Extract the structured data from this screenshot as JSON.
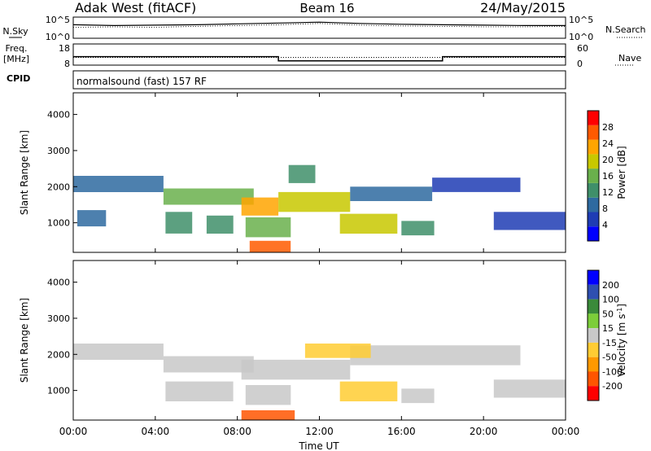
{
  "header": {
    "site": "Adak West (fitACF)",
    "beam": "Beam 16",
    "date": "24/May/2015"
  },
  "top_panel": {
    "nsky_label": "N.Sky",
    "nsearch_label": "N.Search",
    "noise_ticks_left": [
      "10^5",
      "10^0"
    ],
    "noise_ticks_right": [
      "10^5",
      "10^0"
    ],
    "freq_label": "Freq.",
    "freq_unit": "[MHz]",
    "freq_ticks": [
      "18",
      "8"
    ],
    "nave_label": "Nave",
    "nave_ticks": [
      "60",
      "0"
    ],
    "cpid_label": "CPID",
    "cpid_text": "normalsound (fast) 157 RF"
  },
  "x_axis": {
    "label": "Time UT",
    "ticks": [
      "00:00",
      "04:00",
      "08:00",
      "12:00",
      "16:00",
      "20:00",
      "00:00"
    ]
  },
  "colors": {
    "frame": "#000000",
    "power_scale": [
      "#0000ff",
      "#1e3cb4",
      "#2e6aa0",
      "#3f8f6a",
      "#6ab04c",
      "#c8c800",
      "#ffa500",
      "#ff5a00",
      "#ff0000"
    ],
    "velocity_scale": [
      "#0000ff",
      "#2e4fb0",
      "#3a8a3a",
      "#7ccd3a",
      "#c8c8c8",
      "#ffcc33",
      "#ff9900",
      "#ff5500",
      "#ff0000"
    ]
  },
  "chart_data": [
    {
      "type": "line",
      "name": "noise-panel",
      "series": [
        {
          "name": "N.Sky",
          "x": [
            0,
            2,
            4,
            6,
            8,
            10,
            12,
            14,
            16,
            18,
            20,
            22,
            24
          ],
          "y": [
            3.2,
            3.0,
            3.1,
            3.2,
            3.4,
            3.6,
            3.8,
            3.5,
            3.3,
            3.2,
            3.1,
            3.0,
            3.0
          ]
        },
        {
          "name": "N.Search",
          "x": [
            0,
            2,
            4,
            6,
            8,
            10,
            12,
            14,
            16,
            18,
            20,
            22,
            24
          ],
          "y": [
            2.6,
            2.7,
            2.6,
            2.8,
            3.0,
            3.2,
            3.5,
            3.1,
            2.9,
            2.8,
            2.7,
            2.7,
            2.8
          ]
        }
      ],
      "xlim": [
        0,
        24
      ],
      "ylim": [
        0,
        5
      ],
      "yscale": "log"
    },
    {
      "type": "line",
      "name": "freq-nave-panel",
      "series": [
        {
          "name": "Freq.",
          "x": [
            0,
            10,
            10,
            18,
            18,
            24
          ],
          "y": [
            12,
            12,
            10,
            10,
            12,
            12
          ]
        },
        {
          "name": "Nave",
          "x": [
            0,
            6,
            12,
            18,
            24
          ],
          "y": [
            22,
            22,
            22,
            22,
            22
          ]
        }
      ],
      "xlim": [
        0,
        24
      ],
      "ylim_freq": [
        8,
        18
      ],
      "ylim_nave": [
        0,
        60
      ]
    },
    {
      "type": "heatmap",
      "name": "power",
      "ylabel": "Slant Range [km]",
      "xlabel": "",
      "xlim": [
        0,
        24
      ],
      "ylim": [
        180,
        4600
      ],
      "yticks": [
        "1000",
        "2000",
        "3000",
        "4000"
      ],
      "colorbar_label": "Power [dB]",
      "colorbar_ticks": [
        "4",
        "8",
        "12",
        "16",
        "20",
        "24",
        "28"
      ],
      "regions": [
        {
          "t0": 0.0,
          "t1": 4.4,
          "r0": 1850,
          "r1": 2300,
          "value": 8
        },
        {
          "t0": 4.4,
          "t1": 8.8,
          "r0": 1500,
          "r1": 1950,
          "value": 16
        },
        {
          "t0": 8.2,
          "t1": 10.0,
          "r0": 1200,
          "r1": 1700,
          "value": 22
        },
        {
          "t0": 10.0,
          "t1": 13.5,
          "r0": 1300,
          "r1": 1850,
          "value": 18
        },
        {
          "t0": 13.5,
          "t1": 17.5,
          "r0": 1600,
          "r1": 2000,
          "value": 8
        },
        {
          "t0": 17.5,
          "t1": 21.8,
          "r0": 1850,
          "r1": 2250,
          "value": 6
        },
        {
          "t0": 0.2,
          "t1": 1.6,
          "r0": 900,
          "r1": 1350,
          "value": 8
        },
        {
          "t0": 4.5,
          "t1": 5.8,
          "r0": 700,
          "r1": 1300,
          "value": 14
        },
        {
          "t0": 6.5,
          "t1": 7.8,
          "r0": 700,
          "r1": 1200,
          "value": 12
        },
        {
          "t0": 8.4,
          "t1": 10.6,
          "r0": 600,
          "r1": 1150,
          "value": 16
        },
        {
          "t0": 13.0,
          "t1": 15.8,
          "r0": 700,
          "r1": 1250,
          "value": 20
        },
        {
          "t0": 16.0,
          "t1": 17.6,
          "r0": 650,
          "r1": 1050,
          "value": 12
        },
        {
          "t0": 20.5,
          "t1": 24.0,
          "r0": 800,
          "r1": 1300,
          "value": 6
        },
        {
          "t0": 10.5,
          "t1": 11.8,
          "r0": 2100,
          "r1": 2600,
          "value": 12
        },
        {
          "t0": 8.6,
          "t1": 10.6,
          "r0": 180,
          "r1": 500,
          "value": 28
        }
      ]
    },
    {
      "type": "heatmap",
      "name": "velocity",
      "ylabel": "Slant Range [km]",
      "xlabel": "Time UT",
      "xlim": [
        0,
        24
      ],
      "ylim": [
        180,
        4600
      ],
      "yticks": [
        "1000",
        "2000",
        "3000",
        "4000"
      ],
      "colorbar_label": "Velocity [m s^-1]",
      "colorbar_ticks": [
        "200",
        "100",
        "50",
        "15",
        "-15",
        "-50",
        "-100",
        "-200"
      ],
      "regions": [
        {
          "t0": 0.0,
          "t1": 4.4,
          "r0": 1850,
          "r1": 2300,
          "value": 0
        },
        {
          "t0": 4.4,
          "t1": 8.8,
          "r0": 1500,
          "r1": 1950,
          "value": 0
        },
        {
          "t0": 8.2,
          "t1": 13.5,
          "r0": 1300,
          "r1": 1850,
          "value": 0
        },
        {
          "t0": 13.5,
          "t1": 21.8,
          "r0": 1700,
          "r1": 2250,
          "value": 0
        },
        {
          "t0": 11.3,
          "t1": 14.5,
          "r0": 1900,
          "r1": 2300,
          "value": -60
        },
        {
          "t0": 4.5,
          "t1": 7.8,
          "r0": 700,
          "r1": 1250,
          "value": 0
        },
        {
          "t0": 8.4,
          "t1": 10.6,
          "r0": 600,
          "r1": 1150,
          "value": 0
        },
        {
          "t0": 13.0,
          "t1": 15.8,
          "r0": 700,
          "r1": 1250,
          "value": -40
        },
        {
          "t0": 16.0,
          "t1": 17.6,
          "r0": 650,
          "r1": 1050,
          "value": 0
        },
        {
          "t0": 20.5,
          "t1": 24.0,
          "r0": 800,
          "r1": 1300,
          "value": 0
        },
        {
          "t0": 8.2,
          "t1": 10.8,
          "r0": 180,
          "r1": 450,
          "value": -150
        }
      ]
    }
  ]
}
